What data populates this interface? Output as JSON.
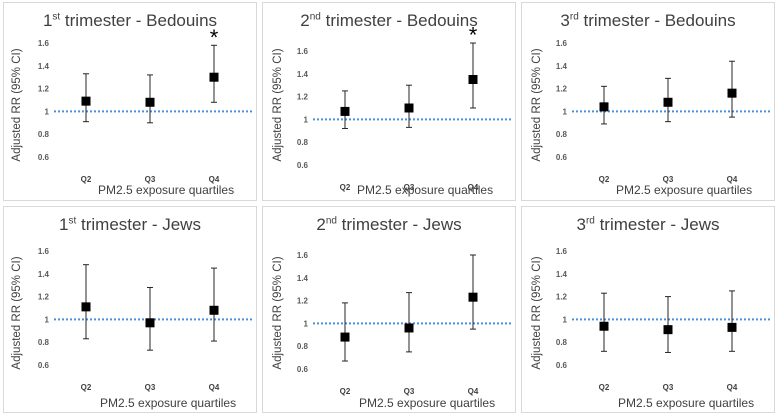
{
  "chart_data": [
    {
      "type": "scatter",
      "title": {
        "ordinal": "1",
        "suffix": "st",
        "rest": " trimester - Bedouins"
      },
      "xlabel": "PM2.5 exposure quartiles",
      "ylabel": "Adjusted RR (95% CI)",
      "ylim": [
        0.6,
        1.6
      ],
      "yticks": [
        "0.6",
        "0.8",
        "1",
        "1.2",
        "1.4",
        "1.6"
      ],
      "reference_line": 1.0,
      "categories": [
        "Q2",
        "Q3",
        "Q4"
      ],
      "values": [
        1.09,
        1.08,
        1.3
      ],
      "ci_low": [
        0.91,
        0.9,
        1.08
      ],
      "ci_high": [
        1.33,
        1.32,
        1.58
      ],
      "significance": [
        "",
        "",
        "*"
      ]
    },
    {
      "type": "scatter",
      "title": {
        "ordinal": "2",
        "suffix": "nd",
        "rest": " trimester - Bedouins"
      },
      "xlabel": "PM2.5 exposure quartiles",
      "ylabel": "Adjusted RR (95% CI)",
      "ylim": [
        0.6,
        1.6
      ],
      "yticks": [
        "0.6",
        "0.8",
        "1",
        "1.2",
        "1.4",
        "1.6"
      ],
      "reference_line": 1.0,
      "categories": [
        "Q2",
        "Q3",
        "Q4"
      ],
      "values": [
        1.07,
        1.1,
        1.35
      ],
      "ci_low": [
        0.92,
        0.93,
        1.1
      ],
      "ci_high": [
        1.25,
        1.3,
        1.67
      ],
      "significance": [
        "",
        "",
        "*"
      ]
    },
    {
      "type": "scatter",
      "title": {
        "ordinal": "3",
        "suffix": "rd",
        "rest": " trimester - Bedouins"
      },
      "xlabel": "PM2.5 exposure quartiles",
      "ylabel": "Adjusted RR (95% CI)",
      "ylim": [
        0.6,
        1.6
      ],
      "yticks": [
        "0.6",
        "0.8",
        "1",
        "1.2",
        "1.4",
        "1.6"
      ],
      "reference_line": 1.0,
      "categories": [
        "Q2",
        "Q3",
        "Q4"
      ],
      "values": [
        1.04,
        1.08,
        1.16
      ],
      "ci_low": [
        0.89,
        0.91,
        0.95
      ],
      "ci_high": [
        1.22,
        1.29,
        1.44
      ],
      "significance": [
        "",
        "",
        ""
      ]
    },
    {
      "type": "scatter",
      "title": {
        "ordinal": "1",
        "suffix": "st",
        "rest": " trimester - Jews"
      },
      "xlabel": "PM2.5 exposure quartiles",
      "ylabel": "Adjusted RR (95% CI)",
      "ylim": [
        0.6,
        1.6
      ],
      "yticks": [
        "0.6",
        "0.8",
        "1",
        "1.2",
        "1.4",
        "1.6"
      ],
      "reference_line": 1.0,
      "categories": [
        "Q2",
        "Q3",
        "Q4"
      ],
      "values": [
        1.11,
        0.97,
        1.08
      ],
      "ci_low": [
        0.83,
        0.73,
        0.81
      ],
      "ci_high": [
        1.48,
        1.28,
        1.45
      ],
      "significance": [
        "",
        "",
        ""
      ]
    },
    {
      "type": "scatter",
      "title": {
        "ordinal": "2",
        "suffix": "nd",
        "rest": " trimester - Jews"
      },
      "xlabel": "PM2.5 exposure quartiles",
      "ylabel": "Adjusted RR (95% CI)",
      "ylim": [
        0.6,
        1.6
      ],
      "yticks": [
        "0.6",
        "0.8",
        "1",
        "1.2",
        "1.4",
        "1.6"
      ],
      "reference_line": 1.0,
      "categories": [
        "Q2",
        "Q3",
        "Q4"
      ],
      "values": [
        0.88,
        0.96,
        1.23
      ],
      "ci_low": [
        0.67,
        0.75,
        0.95
      ],
      "ci_high": [
        1.18,
        1.27,
        1.6
      ],
      "significance": [
        "",
        "",
        ""
      ]
    },
    {
      "type": "scatter",
      "title": {
        "ordinal": "3",
        "suffix": "rd",
        "rest": " trimester - Jews"
      },
      "xlabel": "PM2.5 exposure quartiles",
      "ylabel": "Adjusted RR (95% CI)",
      "ylim": [
        0.6,
        1.6
      ],
      "yticks": [
        "0.6",
        "0.8",
        "1",
        "1.2",
        "1.4",
        "1.6"
      ],
      "reference_line": 1.0,
      "categories": [
        "Q2",
        "Q3",
        "Q4"
      ],
      "values": [
        0.94,
        0.91,
        0.93
      ],
      "ci_low": [
        0.72,
        0.71,
        0.72
      ],
      "ci_high": [
        1.23,
        1.2,
        1.25
      ],
      "significance": [
        "",
        "",
        ""
      ]
    }
  ]
}
